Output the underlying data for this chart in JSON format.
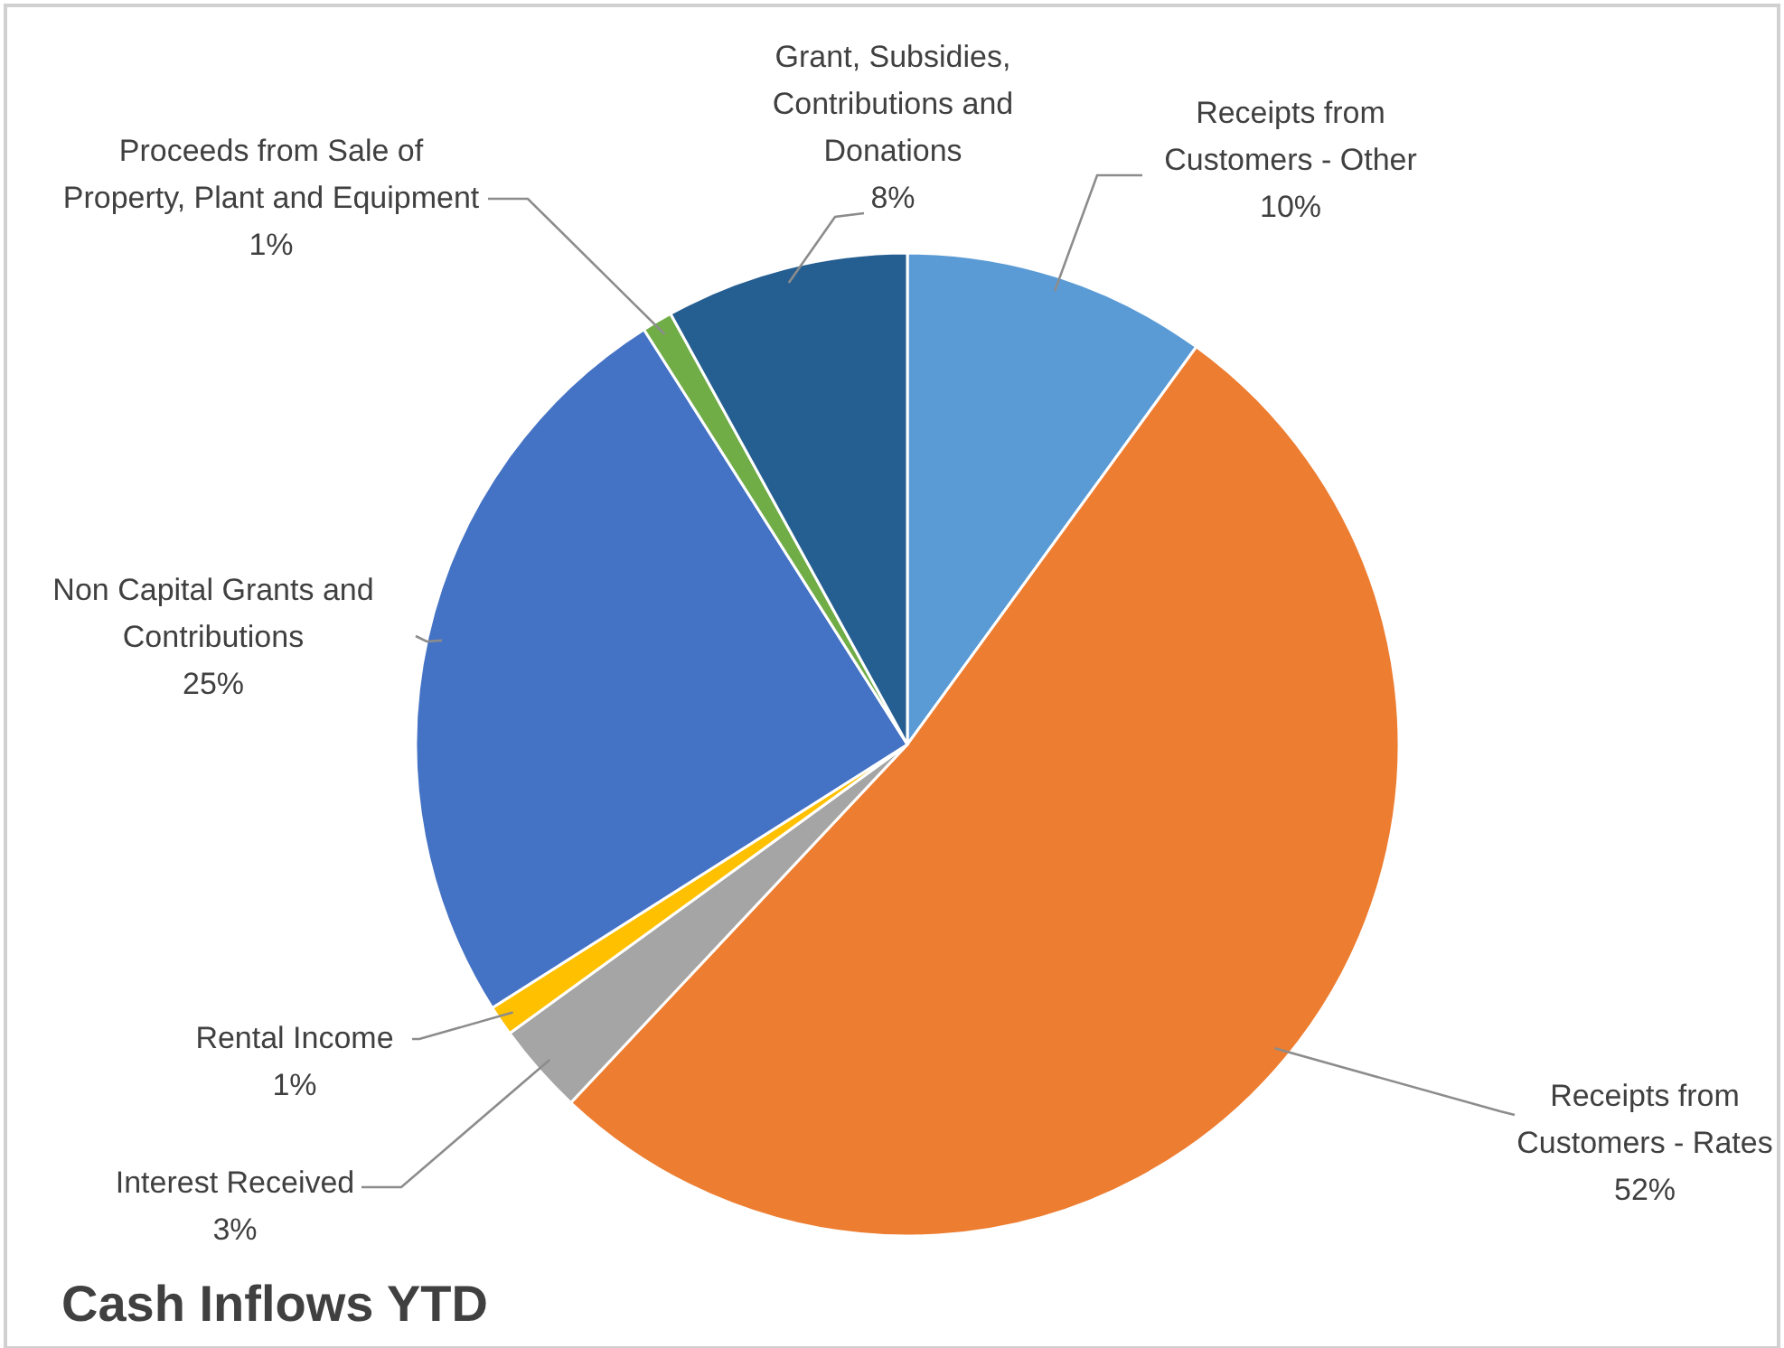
{
  "chart_data": {
    "type": "pie",
    "title": "Cash Inflows YTD",
    "categories": [
      "Receipts from Customers - Other",
      "Receipts from Customers - Rates",
      "Interest Received",
      "Rental Income",
      "Non Capital Grants and Contributions",
      "Proceeds from Sale of Property, Plant and Equipment",
      "Grant, Subsidies, Contributions and Donations"
    ],
    "values": [
      10,
      52,
      3,
      1,
      25,
      1,
      8
    ],
    "colors": [
      "#5b9bd5",
      "#ed7d31",
      "#a5a5a5",
      "#ffc000",
      "#4472c4",
      "#70ad47",
      "#255e91"
    ],
    "value_labels": [
      "10%",
      "52%",
      "3%",
      "1%",
      "25%",
      "1%",
      "8%"
    ]
  }
}
